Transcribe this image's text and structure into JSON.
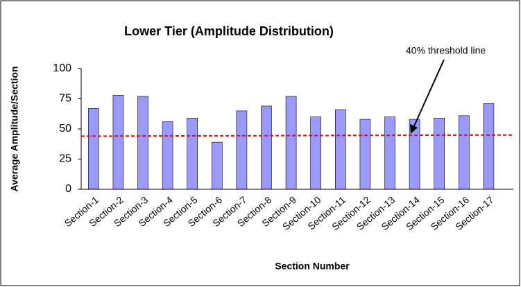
{
  "chart_data": {
    "type": "bar",
    "title": "Lower Tier (Amplitude Distribution)",
    "x_label": "Section Number",
    "y_label": "Average Amplitude/Section",
    "categories": [
      "Section-1",
      "Section-2",
      "Section-3",
      "Section-4",
      "Section-5",
      "Section-6",
      "Section-7",
      "Section-8",
      "Section-9",
      "Section-10",
      "Section-11",
      "Section-12",
      "Section-13",
      "Section-14",
      "Section-15",
      "Section-16",
      "Section-17"
    ],
    "values": [
      67,
      78,
      77,
      56,
      59,
      39,
      65,
      69,
      77,
      60,
      66,
      58,
      60,
      58,
      59,
      61,
      71
    ],
    "color": "#9999ff",
    "ylim": [
      0,
      100
    ],
    "yticks": [
      0,
      25,
      50,
      75,
      100
    ],
    "threshold": {
      "label": "40% threshold line",
      "values": [
        44,
        45
      ],
      "color": "#ff0000"
    }
  }
}
